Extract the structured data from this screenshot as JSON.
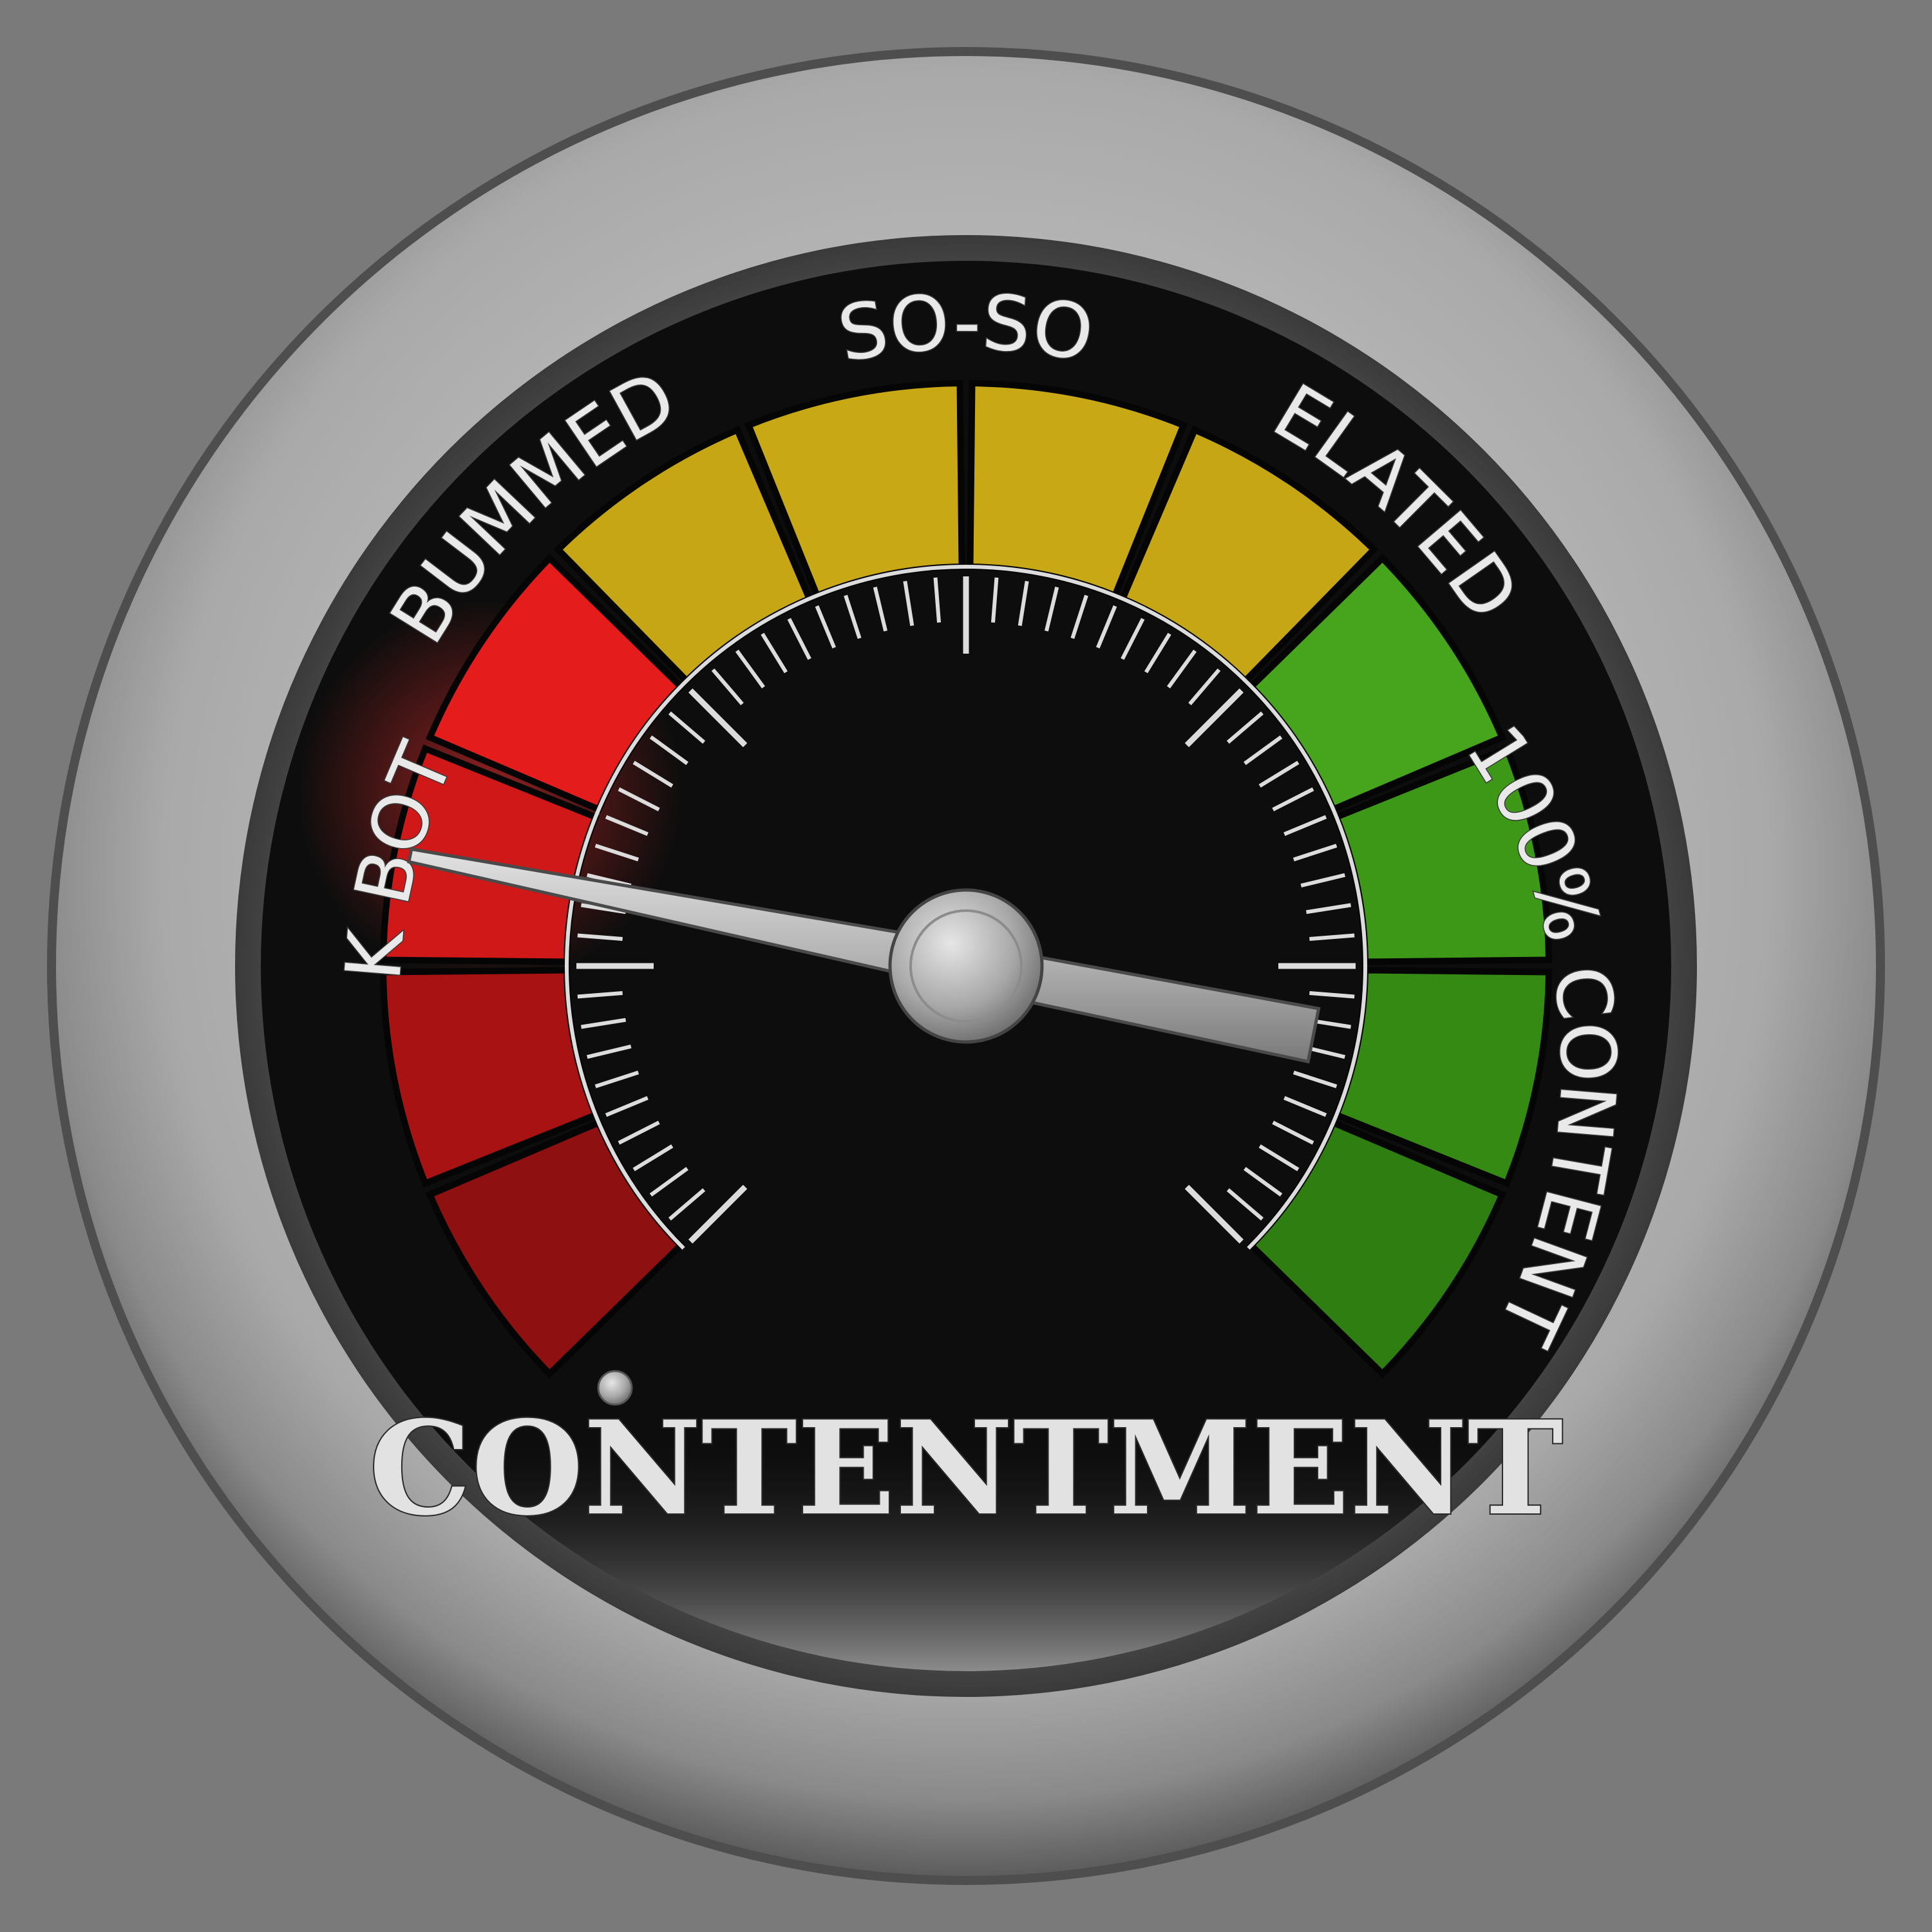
{
  "gauge": {
    "title": "CONTENTMENT",
    "zones": [
      {
        "label": "ROCK BOTTOM"
      },
      {
        "label": "BUMMED"
      },
      {
        "label": "SO-SO"
      },
      {
        "label": "ELATED"
      },
      {
        "label": "100% CONTENT"
      }
    ],
    "segment_colors": [
      "#8e1010",
      "#a81212",
      "#d01818",
      "#e51c1c",
      "#c7a616",
      "#c9a816",
      "#c9a816",
      "#c7a616",
      "#46a51c",
      "#3d9818",
      "#358a14",
      "#2f7e12"
    ],
    "scale_min": 0,
    "scale_max": 60,
    "needle_value": 12.5,
    "colors": {
      "background": "#7b7a7b",
      "dial_face": "#0d0d0d",
      "bezel": "#9c9c9c",
      "ticks": "#dcdcdc"
    }
  }
}
